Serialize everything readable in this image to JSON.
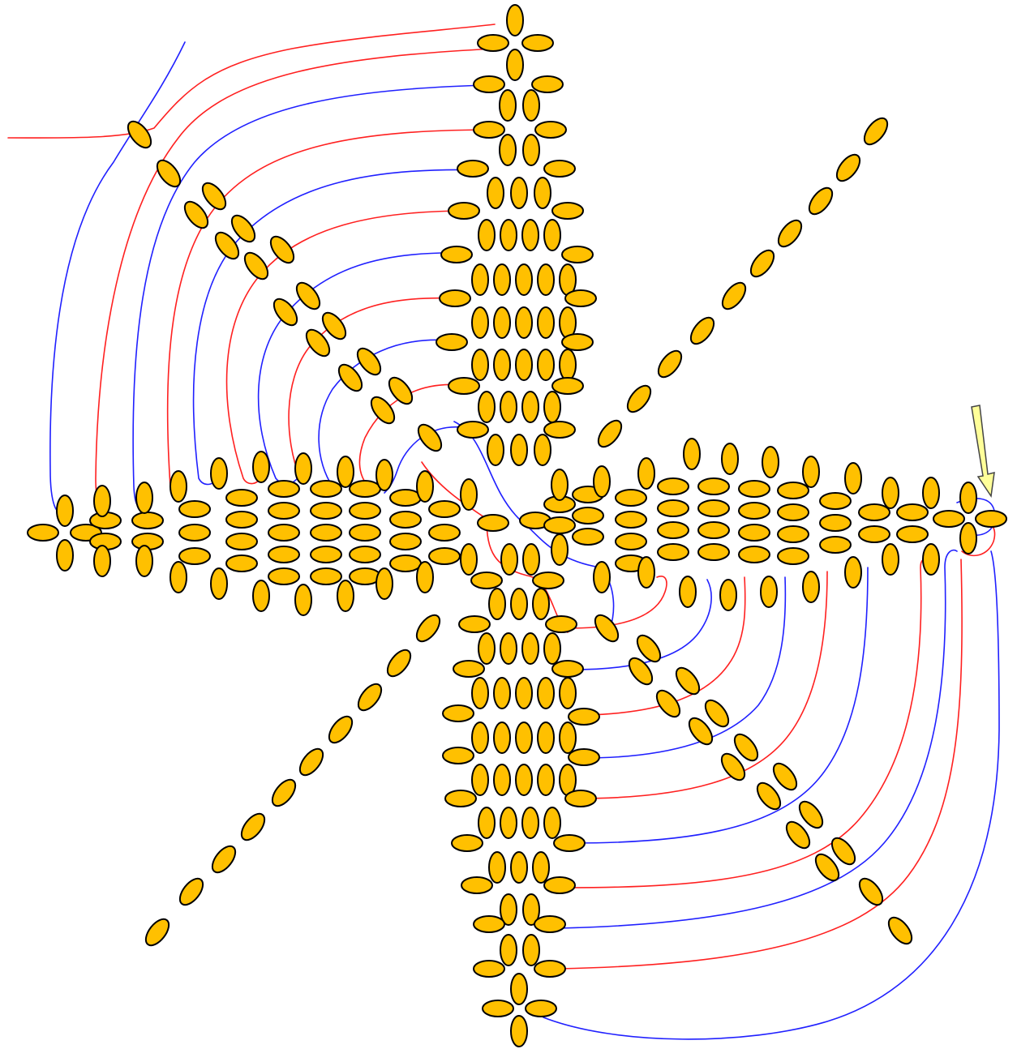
{
  "diagram": {
    "bead_color": "#ffc000",
    "bead_outline_color": "#000000",
    "thread_colors": {
      "red": "#ff2020",
      "blue": "#2020ff"
    },
    "arrow_color": "#ffff99",
    "arrow_outline_color": "#444444",
    "arms": [
      "up",
      "left",
      "down",
      "right"
    ],
    "diagonals": [
      "top-left",
      "top-right",
      "bottom-left",
      "bottom-right"
    ]
  }
}
